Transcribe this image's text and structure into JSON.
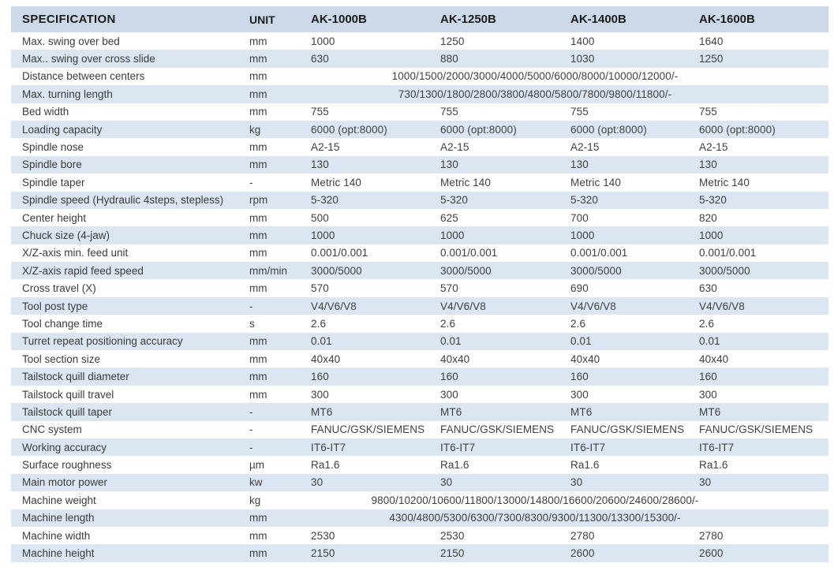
{
  "table": {
    "headers": {
      "specification": "SPECIFICATION",
      "unit": "UNIT",
      "models": [
        "AK-1000B",
        "AK-1250B",
        "AK-1400B",
        "AK-1600B"
      ]
    },
    "rows": [
      {
        "label": "Max. swing over bed",
        "unit": "mm",
        "values": [
          "1000",
          "1250",
          "1400",
          "1640"
        ]
      },
      {
        "label": "Max.. swing over cross slide",
        "unit": "mm",
        "values": [
          "630",
          "880",
          "1030",
          "1250"
        ]
      },
      {
        "label": "Distance between centers",
        "unit": "mm",
        "span": "1000/1500/2000/3000/4000/5000/6000/8000/10000/12000/-"
      },
      {
        "label": "Max. turning length",
        "unit": "mm",
        "span": "730/1300/1800/2800/3800/4800/5800/7800/9800/11800/-"
      },
      {
        "label": "Bed width",
        "unit": "mm",
        "values": [
          "755",
          "755",
          "755",
          "755"
        ]
      },
      {
        "label": "Loading capacity",
        "unit": "kg",
        "values": [
          "6000 (opt:8000)",
          "6000 (opt:8000)",
          "6000 (opt:8000)",
          "6000 (opt:8000)"
        ]
      },
      {
        "label": "Spindle nose",
        "unit": "mm",
        "values": [
          "A2-15",
          "A2-15",
          "A2-15",
          "A2-15"
        ]
      },
      {
        "label": "Spindle bore",
        "unit": "mm",
        "values": [
          "130",
          "130",
          "130",
          "130"
        ]
      },
      {
        "label": "Spindle taper",
        "unit": "-",
        "values": [
          "Metric 140",
          "Metric 140",
          "Metric 140",
          "Metric 140"
        ]
      },
      {
        "label": "Spindle speed (Hydraulic 4steps, stepless)",
        "unit": "rpm",
        "values": [
          "5-320",
          "5-320",
          "5-320",
          "5-320"
        ]
      },
      {
        "label": "Center height",
        "unit": "mm",
        "values": [
          "500",
          "625",
          "700",
          "820"
        ]
      },
      {
        "label": "Chuck size (4-jaw)",
        "unit": "mm",
        "values": [
          "1000",
          "1000",
          "1000",
          "1000"
        ]
      },
      {
        "label": "X/Z-axis min. feed unit",
        "unit": "mm",
        "values": [
          "0.001/0.001",
          "0.001/0.001",
          "0.001/0.001",
          "0.001/0.001"
        ]
      },
      {
        "label": "X/Z-axis rapid feed speed",
        "unit": "mm/min",
        "values": [
          "3000/5000",
          "3000/5000",
          "3000/5000",
          "3000/5000"
        ]
      },
      {
        "label": "Cross travel (X)",
        "unit": "mm",
        "values": [
          "570",
          "570",
          "690",
          "630"
        ]
      },
      {
        "label": "Tool post type",
        "unit": "-",
        "values": [
          "V4/V6/V8",
          "V4/V6/V8",
          "V4/V6/V8",
          "V4/V6/V8"
        ]
      },
      {
        "label": "Tool change time",
        "unit": "s",
        "values": [
          "2.6",
          "2.6",
          "2.6",
          "2.6"
        ]
      },
      {
        "label": "Turret repeat positioning accuracy",
        "unit": "mm",
        "values": [
          "0.01",
          "0.01",
          "0.01",
          "0.01"
        ]
      },
      {
        "label": "Tool section size",
        "unit": "mm",
        "values": [
          "40x40",
          "40x40",
          "40x40",
          "40x40"
        ]
      },
      {
        "label": "Tailstock quill diameter",
        "unit": "mm",
        "values": [
          "160",
          "160",
          "160",
          "160"
        ]
      },
      {
        "label": "Tailstock quill travel",
        "unit": "mm",
        "values": [
          "300",
          "300",
          "300",
          "300"
        ]
      },
      {
        "label": "Tailstock quill taper",
        "unit": "-",
        "values": [
          "MT6",
          "MT6",
          "MT6",
          "MT6"
        ]
      },
      {
        "label": "CNC system",
        "unit": "-",
        "values": [
          "FANUC/GSK/SIEMENS",
          "FANUC/GSK/SIEMENS",
          "FANUC/GSK/SIEMENS",
          "FANUC/GSK/SIEMENS"
        ]
      },
      {
        "label": "Working accuracy",
        "unit": "-",
        "values": [
          "IT6-IT7",
          "IT6-IT7",
          "IT6-IT7",
          "IT6-IT7"
        ]
      },
      {
        "label": "Surface roughness",
        "unit": "µm",
        "values": [
          "Ra1.6",
          "Ra1.6",
          "Ra1.6",
          "Ra1.6"
        ]
      },
      {
        "label": "Main motor power",
        "unit": "kw",
        "values": [
          "30",
          "30",
          "30",
          "30"
        ]
      },
      {
        "label": "Machine weight",
        "unit": "kg",
        "span": "9800/10200/10600/11800/13000/14800/16600/20600/24600/28600/-"
      },
      {
        "label": "Machine length",
        "unit": "mm",
        "span": "4300/4800/5300/6300/7300/8300/9300/11300/13300/15300/-"
      },
      {
        "label": "Machine width",
        "unit": "mm",
        "values": [
          "2530",
          "2530",
          "2780",
          "2780"
        ]
      },
      {
        "label": "Machine height",
        "unit": "mm",
        "values": [
          "2150",
          "2150",
          "2600",
          "2600"
        ]
      }
    ]
  },
  "colors": {
    "header_bg": "#ccd9e9",
    "row_alt_bg": "#dbe6f2",
    "text": "#404040",
    "header_text": "#1c1c1c"
  }
}
